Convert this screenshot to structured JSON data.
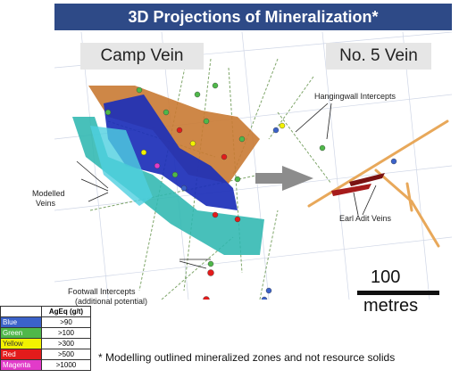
{
  "title": "3D Projections of Mineralization*",
  "panels": {
    "left": "Camp Vein",
    "right": "No. 5 Vein"
  },
  "annotations": {
    "hangingwall": "Hangingwall Intercepts",
    "modelled_line1": "Modelled",
    "modelled_line2": "Veins",
    "earl_adit": "Earl Adit Veins",
    "footwall_line1": "Footwall Intercepts",
    "footwall_line2": "(additional potential)"
  },
  "scale": {
    "value": "100",
    "unit": "metres"
  },
  "legend": {
    "header": "AgEq (g/t)",
    "rows": [
      {
        "name": "Blue",
        "value": ">90",
        "color": "#3b62c9"
      },
      {
        "name": "Green",
        "value": ">100",
        "color": "#4fb84a"
      },
      {
        "name": "Yellow",
        "value": ">300",
        "color": "#f2f200"
      },
      {
        "name": "Red",
        "value": ">500",
        "color": "#e31b1b"
      },
      {
        "name": "Magenta",
        "value": ">1000",
        "color": "#e23bc9"
      }
    ]
  },
  "footnote": "* Modelling outlined mineralized zones and not resource solids",
  "colors": {
    "title_bg": "#2e4a87",
    "vein_cyan": "#2fb7b0",
    "vein_blue": "#1c2fb8",
    "vein_orange": "#c97a33",
    "arrow_gray": "#8c8c8c"
  }
}
